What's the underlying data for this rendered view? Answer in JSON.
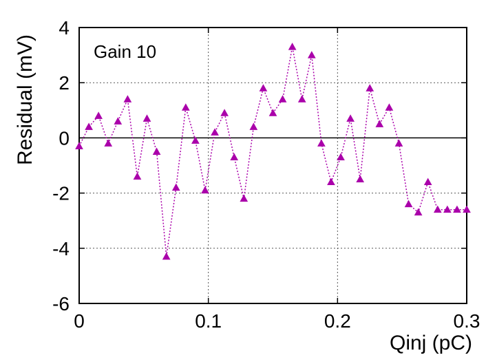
{
  "chart_data": {
    "type": "line",
    "title": "",
    "xlabel": "Qinj (pC)",
    "ylabel": "Residual (mV)",
    "annotation": "Gain 10",
    "xlim": [
      0,
      0.3
    ],
    "ylim": [
      -6,
      4
    ],
    "x_ticks": [
      0,
      0.1,
      0.2,
      0.3
    ],
    "x_tick_labels": [
      "0",
      "0.1",
      "0.2",
      "0.3"
    ],
    "y_ticks": [
      -6,
      -4,
      -2,
      0,
      2,
      4
    ],
    "y_tick_labels": [
      "-6",
      "-4",
      "-2",
      "0",
      "2",
      "4"
    ],
    "grid": true,
    "zero_line": true,
    "series": [
      {
        "color": "#aa00aa",
        "marker": "triangle",
        "line_style": "dotted",
        "x": [
          0.0,
          0.0075,
          0.015,
          0.0225,
          0.03,
          0.0375,
          0.045,
          0.0525,
          0.06,
          0.0675,
          0.075,
          0.0825,
          0.09,
          0.0975,
          0.105,
          0.1125,
          0.12,
          0.1275,
          0.135,
          0.1425,
          0.15,
          0.1575,
          0.165,
          0.1725,
          0.18,
          0.1875,
          0.195,
          0.2025,
          0.21,
          0.2175,
          0.225,
          0.2325,
          0.24,
          0.2475,
          0.255,
          0.2625,
          0.27,
          0.2775,
          0.285,
          0.2925,
          0.3
        ],
        "y": [
          -0.3,
          0.4,
          0.8,
          -0.2,
          0.6,
          1.4,
          -1.4,
          0.7,
          -0.5,
          -4.3,
          -1.8,
          1.1,
          -0.1,
          -1.9,
          0.2,
          0.9,
          -0.7,
          -2.2,
          0.4,
          1.8,
          0.9,
          1.4,
          3.3,
          1.4,
          3.0,
          -0.2,
          -1.6,
          -0.7,
          0.7,
          -1.5,
          1.8,
          0.5,
          1.1,
          -0.2,
          -2.4,
          -2.7,
          -1.6,
          -2.6,
          -2.6,
          -2.6,
          -2.6
        ]
      }
    ]
  }
}
